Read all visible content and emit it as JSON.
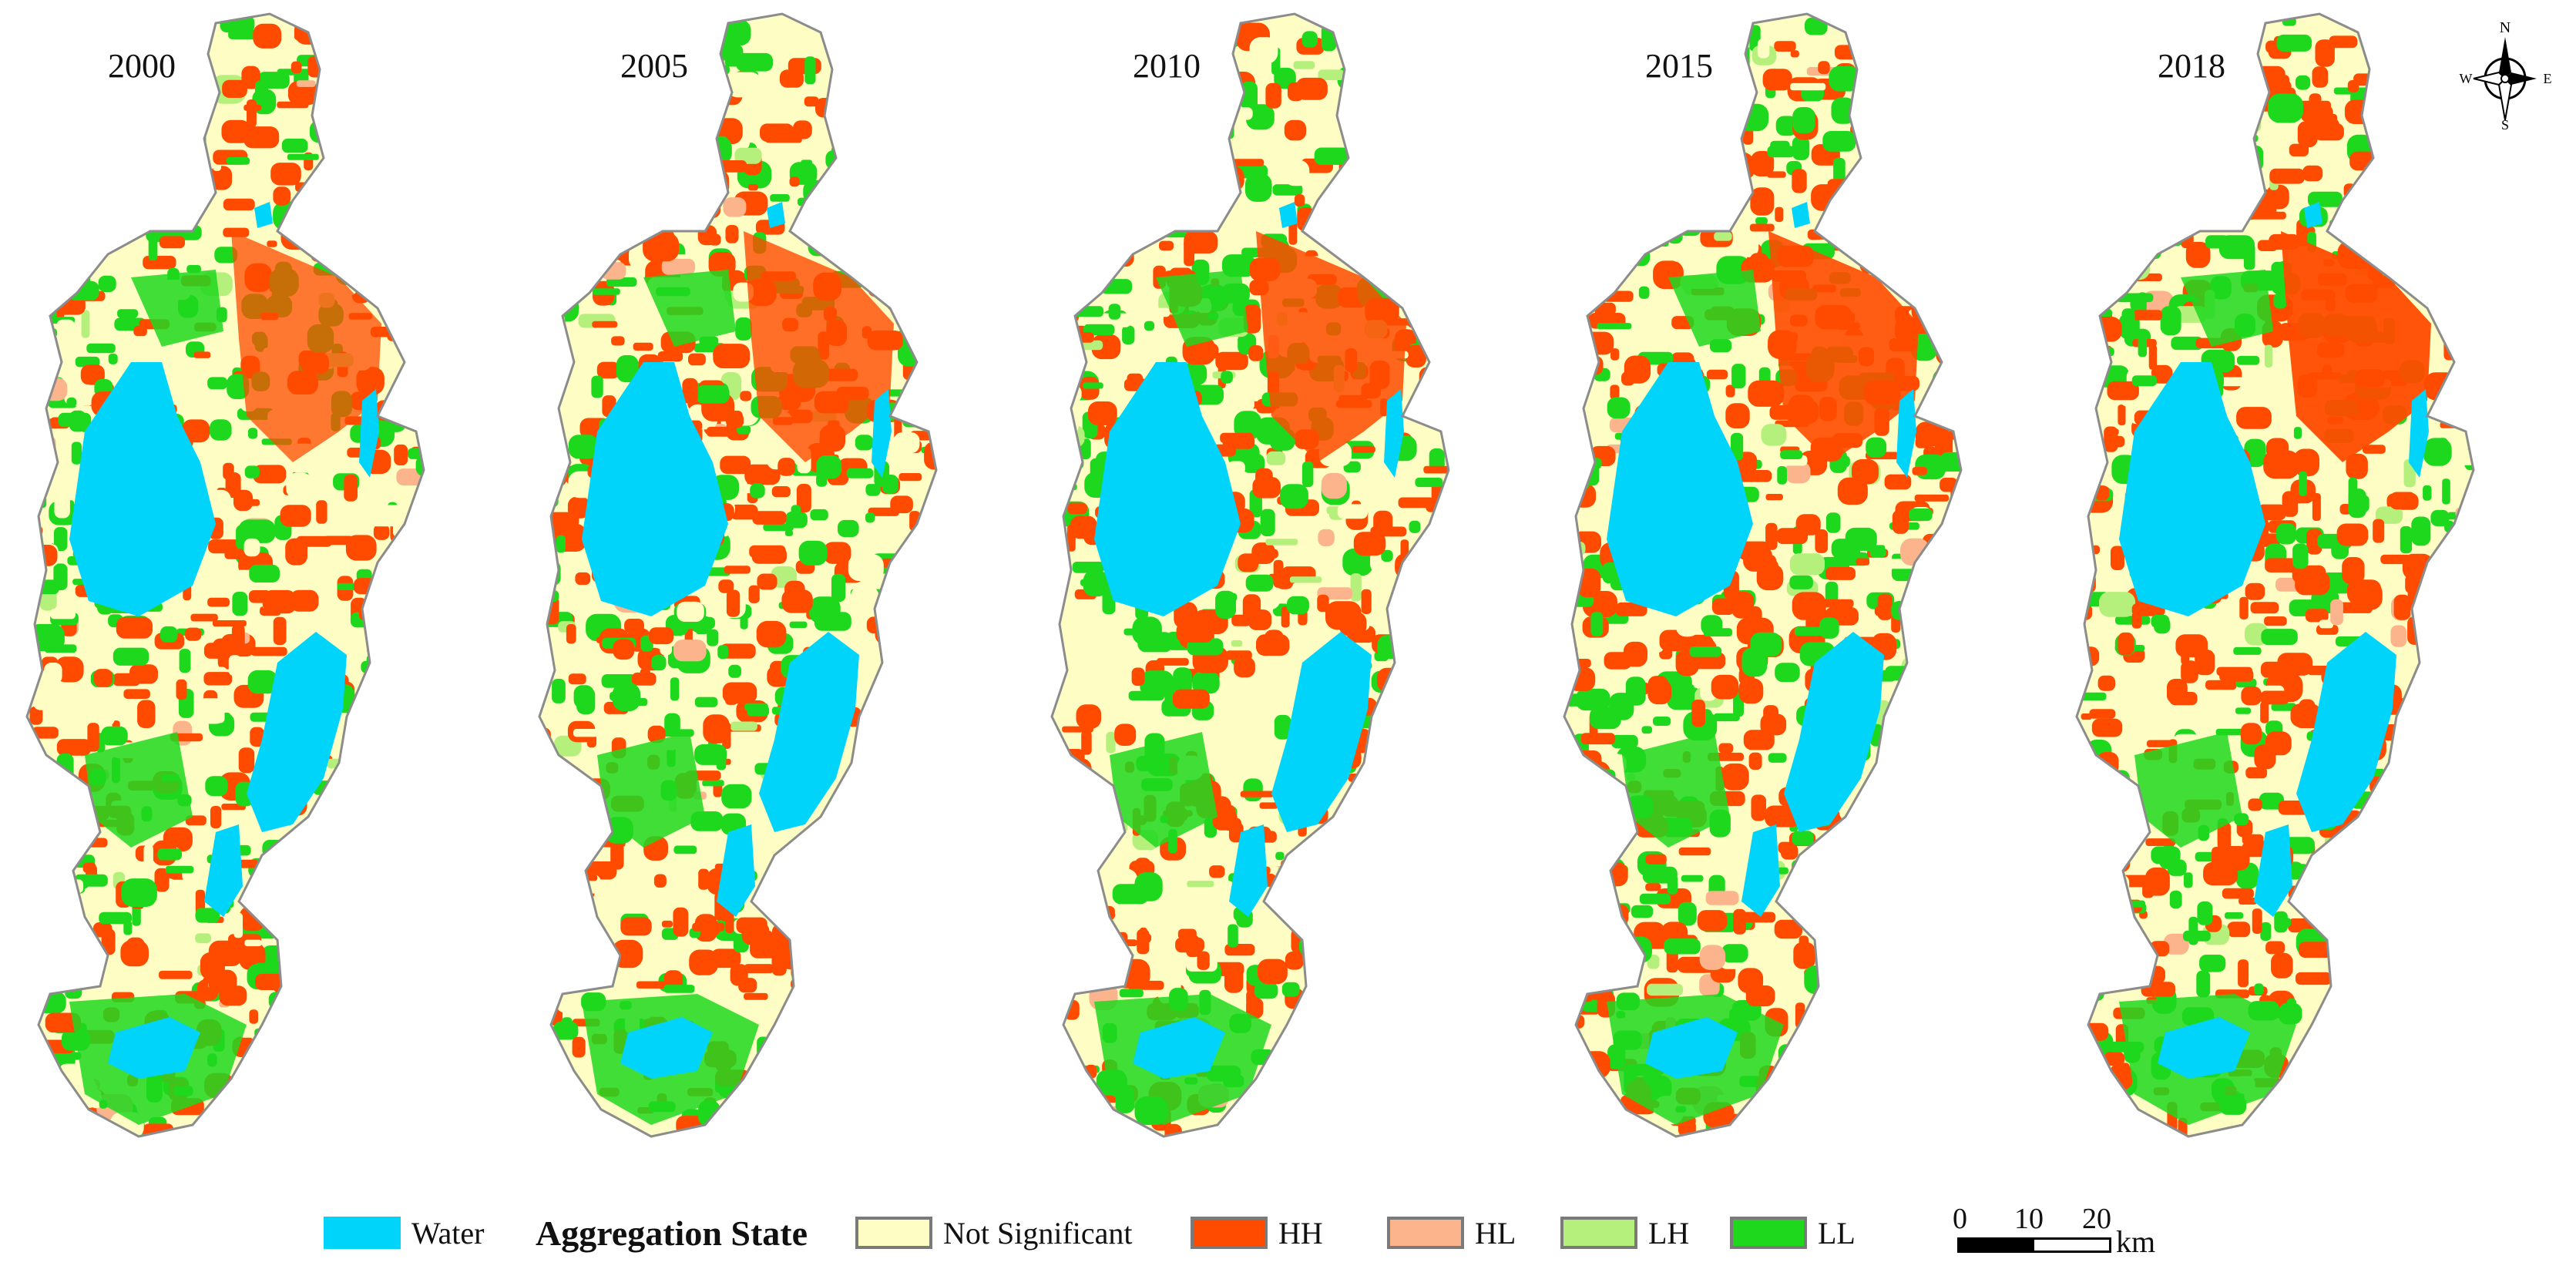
{
  "panels": [
    {
      "year": "2000"
    },
    {
      "year": "2005"
    },
    {
      "year": "2010"
    },
    {
      "year": "2015"
    },
    {
      "year": "2018"
    }
  ],
  "legend": {
    "water_label": "Water",
    "title": "Aggregation State",
    "items": [
      {
        "label": "Not Significant",
        "color": "#fdfdc4"
      },
      {
        "label": "HH",
        "color": "#ff4b00"
      },
      {
        "label": "HL",
        "color": "#fbb48c"
      },
      {
        "label": "LH",
        "color": "#b6f07c"
      },
      {
        "label": "LL",
        "color": "#1ed81e"
      }
    ],
    "water_color": "#00d4fa"
  },
  "scale_bar": {
    "ticks": [
      "0",
      "10",
      "20"
    ],
    "unit": "km"
  },
  "north_arrow": {
    "n": "N",
    "s": "S",
    "e": "E",
    "w": "W"
  },
  "colors": {
    "outline": "#8c8c8c",
    "background": "#ffffff"
  }
}
